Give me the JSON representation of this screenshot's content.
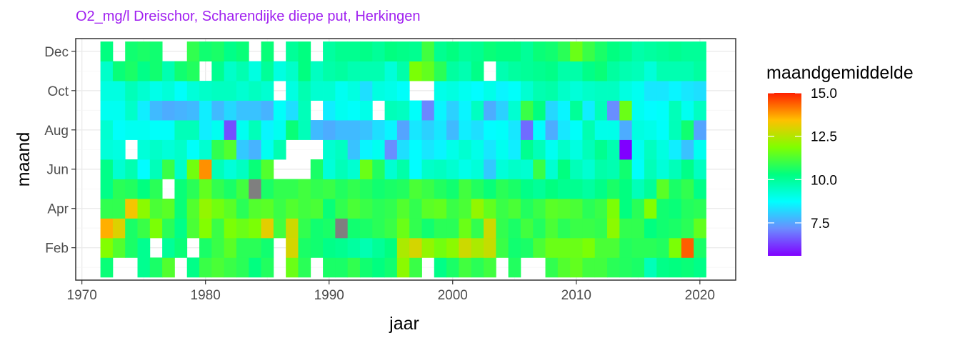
{
  "chart_data": {
    "type": "heatmap",
    "title": "O2_mg/l Dreischor, Scharendijke diepe put, Herkingen",
    "xlabel": "jaar",
    "ylabel": "maand",
    "x_ticks": [
      "1970",
      "1980",
      "1990",
      "2000",
      "2010",
      "2020"
    ],
    "y_ticks": [
      "Feb",
      "Apr",
      "Jun",
      "Aug",
      "Oct",
      "Dec"
    ],
    "xlim": [
      1969.5,
      2022.9
    ],
    "ylim": [
      0.35,
      12.65
    ],
    "grid": true,
    "legend": {
      "title": "maandgemiddelde",
      "labels": [
        "15.0",
        "12.5",
        "10.0",
        "7.5"
      ],
      "min": 5.6,
      "max": 15.0,
      "placement": "right"
    },
    "colors": {
      "title": "#a020f0",
      "na": "#7f7f7f",
      "grid_major": "#ebebeb",
      "grid_minor": "#f5f5f5",
      "panel_border": "#333333"
    },
    "colorscale": [
      "#8000ff",
      "#6b8cff",
      "#00ffff",
      "#00ff80",
      "#80ff00",
      "#ffc000",
      "#ff2000"
    ],
    "notes": "years 1972-2020 (columns), months 1-12 (rows). Values estimated from colours; null = missing tile, 'NA' = grey tile.",
    "years": [
      1972,
      1973,
      1974,
      1975,
      1976,
      1977,
      1978,
      1979,
      1980,
      1981,
      1982,
      1983,
      1984,
      1985,
      1986,
      1987,
      1988,
      1989,
      1990,
      1991,
      1992,
      1993,
      1994,
      1995,
      1996,
      1997,
      1998,
      1999,
      2000,
      2001,
      2002,
      2003,
      2004,
      2005,
      2006,
      2007,
      2008,
      2009,
      2010,
      2011,
      2012,
      2013,
      2014,
      2015,
      2016,
      2017,
      2018,
      2019,
      2020
    ],
    "values": {
      "1972": [
        10.4,
        11.9,
        13.6,
        10.9,
        10.2,
        10.2,
        9.2,
        9.3,
        8.9,
        9.1,
        9.4,
        10.3
      ],
      "1973": [
        null,
        11.3,
        13.0,
        10.9,
        10.8,
        9.3,
        9.1,
        8.8,
        8.9,
        9.1,
        10.4,
        null
      ],
      "1974": [
        null,
        10.6,
        10.6,
        13.3,
        10.7,
        9.7,
        null,
        8.9,
        9.4,
        9.6,
        10.6,
        10.5
      ],
      "1975": [
        10.1,
        10.1,
        11.0,
        12.0,
        10.3,
        8.7,
        9.2,
        8.9,
        8.5,
        9.3,
        10.2,
        10.6
      ],
      "1976": [
        10.6,
        null,
        11.8,
        11.2,
        10.8,
        9.6,
        9.4,
        8.8,
        7.8,
        9.0,
        10.5,
        10.5
      ],
      "1977": [
        11.3,
        10.0,
        10.8,
        11.4,
        null,
        11.0,
        9.2,
        8.8,
        7.6,
        9.2,
        9.7,
        null
      ],
      "1978": [
        null,
        10.4,
        10.2,
        10.4,
        10.4,
        9.4,
        9.4,
        9.6,
        7.7,
        8.8,
        10.5,
        null
      ],
      "1979": [
        10.2,
        null,
        11.2,
        11.3,
        10.8,
        11.7,
        8.8,
        9.6,
        7.8,
        9.2,
        10.7,
        10.9
      ],
      "1980": [
        11.0,
        10.6,
        11.9,
        12.1,
        11.5,
        13.9,
        9.3,
        8.5,
        8.5,
        9.4,
        null,
        10.5
      ],
      "1981": [
        11.2,
        11.0,
        11.0,
        11.7,
        10.9,
        9.6,
        10.9,
        8.9,
        7.8,
        9.5,
        10.1,
        10.6
      ],
      "1982": [
        11.0,
        11.4,
        11.8,
        11.4,
        10.6,
        9.2,
        11.3,
        6.5,
        8.2,
        9.5,
        9.4,
        10.2
      ],
      "1983": [
        10.8,
        10.8,
        11.6,
        10.8,
        11.1,
        9.5,
        8.0,
        8.9,
        7.9,
        9.3,
        9.7,
        10.4
      ],
      "1984": [
        10.3,
        10.8,
        11.8,
        11.3,
        "NA",
        10.4,
        7.7,
        9.6,
        7.9,
        9.5,
        9.1,
        null
      ],
      "1985": [
        10.7,
        10.5,
        13.1,
        11.4,
        10.6,
        11.3,
        8.9,
        8.6,
        7.7,
        9.3,
        10.0,
        10.4
      ],
      "1986": [
        null,
        null,
        11.1,
        11.0,
        10.9,
        null,
        9.7,
        8.9,
        8.8,
        null,
        9.1,
        null
      ],
      "1987": [
        11.6,
        12.9,
        12.8,
        11.3,
        10.9,
        null,
        null,
        10.4,
        8.3,
        9.1,
        9.4,
        10.0
      ],
      "1988": [
        10.8,
        10.6,
        10.9,
        11.1,
        11.1,
        null,
        null,
        9.6,
        9.6,
        9.7,
        10.3,
        10.3
      ],
      "1989": [
        null,
        10.5,
        10.5,
        11.2,
        10.9,
        10.6,
        null,
        7.8,
        null,
        9.3,
        9.5,
        null
      ],
      "1990": [
        10.6,
        10.2,
        10.6,
        10.4,
        11.0,
        9.2,
        9.3,
        7.6,
        8.5,
        9.3,
        9.8,
        9.9
      ],
      "1991": [
        10.6,
        10.1,
        "NA",
        10.9,
        10.7,
        9.6,
        9.5,
        7.8,
        8.9,
        8.9,
        9.9,
        10.1
      ],
      "1992": [
        10.9,
        9.9,
        10.5,
        11.2,
        10.9,
        9.3,
        7.9,
        7.8,
        8.8,
        9.1,
        9.7,
        10.1
      ],
      "1993": [
        10.5,
        9.7,
        10.6,
        11.0,
        10.7,
        11.6,
        8.6,
        7.9,
        9.0,
        8.3,
        9.7,
        10.2
      ],
      "1994": [
        10.3,
        10.0,
        10.8,
        10.8,
        10.5,
        10.7,
        8.9,
        8.3,
        null,
        9.1,
        9.7,
        10.0
      ],
      "1995": [
        10.5,
        10.3,
        11.0,
        10.9,
        10.6,
        9.3,
        7.2,
        8.6,
        9.6,
        9.0,
        9.2,
        10.3
      ],
      "1996": [
        12.0,
        12.4,
        11.6,
        11.3,
        10.7,
        9.8,
        8.3,
        7.5,
        9.5,
        8.8,
        9.8,
        10.2
      ],
      "1997": [
        11.0,
        12.9,
        10.9,
        10.9,
        11.2,
        8.7,
        8.7,
        8.4,
        8.8,
        null,
        11.8,
        10.1
      ],
      "1998": [
        null,
        12.1,
        10.5,
        11.4,
        11.0,
        9.4,
        8.4,
        8.1,
        7.1,
        null,
        11.5,
        11.1
      ],
      "1999": [
        10.2,
        11.7,
        10.8,
        11.5,
        10.7,
        9.5,
        8.6,
        8.4,
        8.6,
        9.0,
        10.8,
        10.1
      ],
      "2000": [
        10.6,
        12.0,
        10.8,
        11.0,
        10.5,
        9.3,
        9.0,
        7.8,
        8.1,
        9.1,
        9.9,
        10.3
      ],
      "2001": [
        11.1,
        12.8,
        11.6,
        11.2,
        11.1,
        9.0,
        9.3,
        8.5,
        8.6,
        8.9,
        9.7,
        10.0
      ],
      "2002": [
        10.8,
        12.4,
        10.9,
        12.1,
        10.7,
        9.2,
        9.0,
        8.3,
        9.5,
        8.7,
        10.2,
        10.1
      ],
      "2003": [
        11.1,
        12.7,
        12.8,
        11.5,
        10.4,
        8.0,
        8.4,
        8.7,
        7.6,
        9.0,
        null,
        10.4
      ],
      "2004": [
        null,
        11.0,
        10.9,
        11.0,
        10.8,
        9.2,
        8.9,
        8.8,
        8.1,
        8.6,
        9.7,
        10.3
      ],
      "2005": [
        10.7,
        10.5,
        10.6,
        11.2,
        10.6,
        9.4,
        8.5,
        8.4,
        9.3,
        8.8,
        9.9,
        10.3
      ],
      "2006": [
        null,
        10.6,
        11.1,
        10.7,
        10.2,
        9.3,
        10.1,
        6.8,
        11.0,
        9.3,
        10.0,
        10.0
      ],
      "2007": [
        null,
        11.2,
        10.7,
        11.0,
        10.0,
        11.0,
        9.6,
        8.7,
        10.3,
        9.7,
        10.1,
        10.4
      ],
      "2008": [
        10.9,
        11.6,
        11.2,
        11.4,
        10.3,
        9.3,
        8.9,
        7.6,
        8.2,
        9.8,
        10.2,
        10.5
      ],
      "2009": [
        11.3,
        11.6,
        10.8,
        11.3,
        10.1,
        10.3,
        9.4,
        8.4,
        8.6,
        9.4,
        9.8,
        10.8
      ],
      "2010": [
        11.5,
        11.6,
        11.0,
        11.2,
        10.1,
        9.6,
        9.1,
        8.8,
        10.0,
        9.2,
        9.8,
        11.6
      ],
      "2011": [
        11.1,
        11.8,
        11.0,
        10.8,
        9.9,
        9.3,
        9.6,
        9.7,
        8.5,
        9.4,
        10.2,
        11.0
      ],
      "2012": [
        11.1,
        11.2,
        10.9,
        11.0,
        10.2,
        9.8,
        10.1,
        9.0,
        9.6,
        9.5,
        10.4,
        10.6
      ],
      "2013": [
        10.8,
        11.2,
        12.0,
        11.8,
        10.6,
        9.7,
        9.7,
        9.0,
        7.2,
        9.5,
        9.9,
        10.3
      ],
      "2014": [
        10.7,
        10.7,
        10.9,
        10.3,
        10.3,
        10.5,
        5.6,
        7.6,
        11.6,
        9.1,
        9.7,
        10.1
      ],
      "2015": [
        10.6,
        10.8,
        10.9,
        10.8,
        9.6,
        8.8,
        8.9,
        9.1,
        8.9,
        8.9,
        9.6,
        9.8
      ],
      "2016": [
        9.6,
        10.8,
        10.3,
        11.9,
        10.0,
        9.6,
        9.5,
        9.0,
        8.7,
        8.4,
        9.2,
        9.9
      ],
      "2017": [
        10.2,
        10.7,
        10.5,
        10.5,
        11.4,
        9.2,
        9.1,
        8.8,
        8.8,
        8.4,
        9.7,
        10.0
      ],
      "2018": [
        10.3,
        11.8,
        10.6,
        10.4,
        10.6,
        9.6,
        8.5,
        9.6,
        9.6,
        8.6,
        9.7,
        10.1
      ],
      "2019": [
        10.4,
        14.4,
        10.8,
        10.7,
        10.9,
        10.2,
        7.9,
        10.5,
        8.9,
        8.4,
        9.7,
        10.0
      ],
      "2020": [
        10.2,
        10.6,
        11.5,
        10.8,
        10.2,
        9.5,
        8.9,
        7.5,
        9.5,
        8.3,
        9.9,
        10.0
      ]
    }
  }
}
